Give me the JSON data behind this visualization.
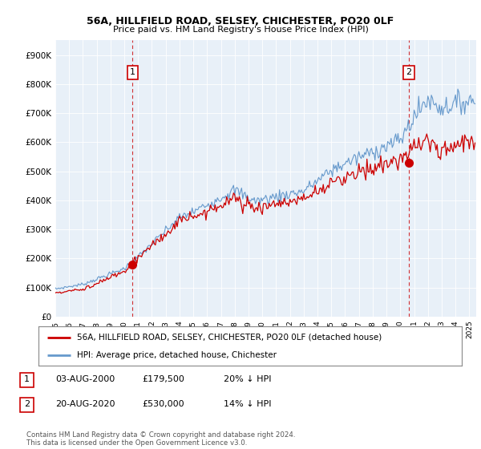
{
  "title1": "56A, HILLFIELD ROAD, SELSEY, CHICHESTER, PO20 0LF",
  "title2": "Price paid vs. HM Land Registry's House Price Index (HPI)",
  "ylabel_ticks": [
    "£0",
    "£100K",
    "£200K",
    "£300K",
    "£400K",
    "£500K",
    "£600K",
    "£700K",
    "£800K",
    "£900K"
  ],
  "ytick_values": [
    0,
    100000,
    200000,
    300000,
    400000,
    500000,
    600000,
    700000,
    800000,
    900000
  ],
  "ylim": [
    0,
    950000
  ],
  "xlim_start": 1995.0,
  "xlim_end": 2025.5,
  "sale1": {
    "date": 2000.6,
    "price": 179500,
    "label": "1"
  },
  "sale2": {
    "date": 2020.625,
    "price": 530000,
    "label": "2"
  },
  "annotation1": {
    "date_str": "03-AUG-2000",
    "price_str": "£179,500",
    "pct_str": "20% ↓ HPI"
  },
  "annotation2": {
    "date_str": "20-AUG-2020",
    "price_str": "£530,000",
    "pct_str": "14% ↓ HPI"
  },
  "legend_red": "56A, HILLFIELD ROAD, SELSEY, CHICHESTER, PO20 0LF (detached house)",
  "legend_blue": "HPI: Average price, detached house, Chichester",
  "footer": "Contains HM Land Registry data © Crown copyright and database right 2024.\nThis data is licensed under the Open Government Licence v3.0.",
  "red_color": "#cc0000",
  "blue_color": "#6699cc",
  "plot_bg": "#e8f0f8",
  "background_color": "#ffffff",
  "grid_color": "#ffffff"
}
